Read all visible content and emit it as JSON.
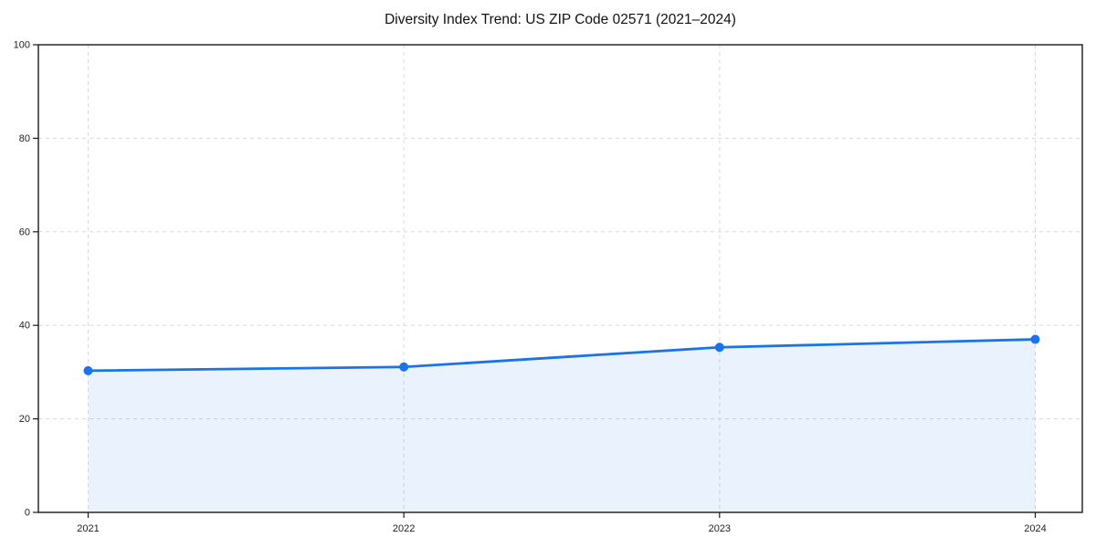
{
  "chart_data": {
    "type": "area",
    "title": "Diversity Index Trend: US ZIP Code 02571 (2021–2024)",
    "categories": [
      "2021",
      "2022",
      "2023",
      "2024"
    ],
    "series": [
      {
        "name": "Diversity Index",
        "values": [
          30.3,
          31.1,
          35.3,
          37.0
        ]
      }
    ],
    "xlabel": "",
    "ylabel": "",
    "ylim": [
      0,
      100
    ],
    "yticks": [
      0,
      20,
      40,
      60,
      80,
      100
    ],
    "grid": true,
    "grid_style": "dashed",
    "legend": "none",
    "marker": "circle",
    "colors": {
      "line": "#1a73e8",
      "marker": "#1a73e8",
      "fill": "#1a73e8",
      "fill_opacity": 0.09,
      "gridline": "#d9d9d9",
      "spine": "#1a1a1a",
      "tick_label": "#1f1f1f",
      "title": "#111111",
      "background": "#ffffff"
    }
  }
}
